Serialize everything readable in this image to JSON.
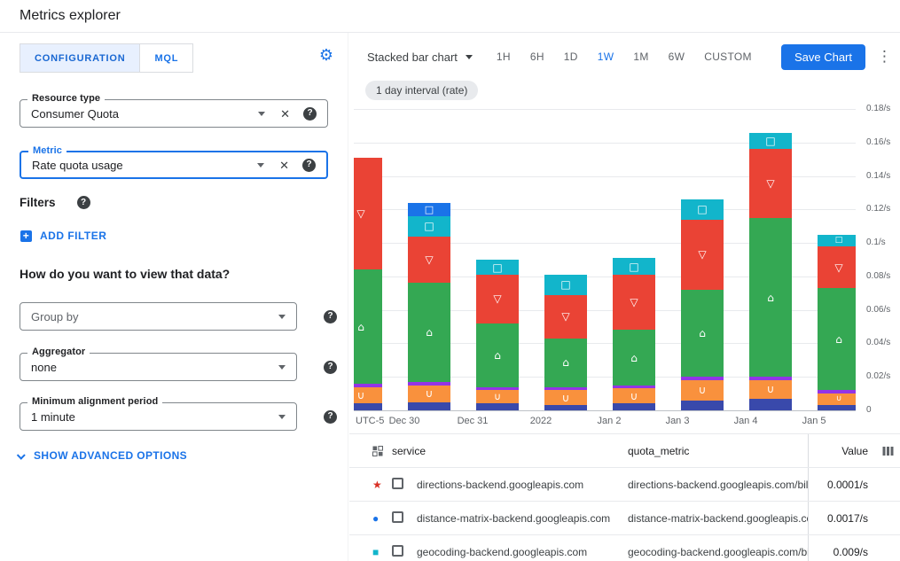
{
  "header": {
    "title": "Metrics explorer"
  },
  "icons": {
    "help_glyph": "?",
    "gear_glyph": "⚙",
    "kebab_glyph": "⋮",
    "clear_glyph": "✕",
    "plus_glyph": "+"
  },
  "left": {
    "tabs": [
      "CONFIGURATION",
      "MQL"
    ],
    "resource_type": {
      "label": "Resource type",
      "value": "Consumer Quota"
    },
    "metric": {
      "label": "Metric",
      "value": "Rate quota usage"
    },
    "filters_label": "Filters",
    "add_filter_label": "ADD FILTER",
    "view_question": "How do you want to view that data?",
    "group_by": {
      "placeholder": "Group by"
    },
    "aggregator": {
      "label": "Aggregator",
      "value": "none"
    },
    "alignment": {
      "label": "Minimum alignment period",
      "value": "1 minute"
    },
    "advanced_label": "SHOW ADVANCED OPTIONS"
  },
  "toolbar": {
    "chart_type": "Stacked bar chart",
    "ranges": [
      "1H",
      "6H",
      "1D",
      "1W",
      "1M",
      "6W",
      "CUSTOM"
    ],
    "active_range": "1W",
    "save_label": "Save Chart"
  },
  "chip": "1 day interval (rate)",
  "accent_color": "#1a73e8",
  "chart_data": {
    "type": "bar",
    "stacked": true,
    "x_axis_prefix": "UTC-5",
    "x_axis_labels": [
      "Dec 30",
      "Dec 31",
      "2022",
      "Jan 2",
      "Jan 3",
      "Jan 4",
      "Jan 5"
    ],
    "ylim": [
      0,
      0.18
    ],
    "y_tick_step": 0.02,
    "y_tick_labels": [
      "0",
      "0.02/s",
      "0.04/s",
      "0.06/s",
      "0.08/s",
      "0.1/s",
      "0.12/s",
      "0.14/s",
      "0.16/s",
      "0.18/s"
    ],
    "grid": true,
    "legend_position": "table-below",
    "series": [
      {
        "name": "series-navy",
        "color": "#3949ab",
        "marker": "",
        "values": [
          0.004,
          0.005,
          0.004,
          0.003,
          0.004,
          0.006,
          0.007,
          0.003
        ]
      },
      {
        "name": "series-orange",
        "color": "#f9913d",
        "marker": "∪",
        "values": [
          0.01,
          0.01,
          0.008,
          0.009,
          0.009,
          0.012,
          0.011,
          0.007
        ]
      },
      {
        "name": "series-purple",
        "color": "#9334e6",
        "marker": "",
        "values": [
          0.002,
          0.002,
          0.002,
          0.002,
          0.002,
          0.002,
          0.002,
          0.002
        ]
      },
      {
        "name": "series-green",
        "color": "#34a853",
        "marker": "⌂",
        "values": [
          0.068,
          0.059,
          0.038,
          0.029,
          0.033,
          0.052,
          0.095,
          0.061
        ]
      },
      {
        "name": "series-red",
        "color": "#ea4335",
        "marker": "▽",
        "values": [
          0.067,
          0.028,
          0.029,
          0.026,
          0.033,
          0.042,
          0.041,
          0.025
        ]
      },
      {
        "name": "series-teal",
        "color": "#12b5cb",
        "marker": "□",
        "values": [
          0,
          0.012,
          0.009,
          0.012,
          0.01,
          0.012,
          0.01,
          0.007
        ]
      },
      {
        "name": "series-blue",
        "color": "#1a73e8",
        "marker": "□",
        "values": [
          0,
          0.008,
          0,
          0,
          0,
          0,
          0,
          0
        ]
      }
    ]
  },
  "table": {
    "columns": [
      "service",
      "quota_metric",
      "Value"
    ],
    "rows": [
      {
        "marker": "star",
        "marker_color": "#d93025",
        "service": "directions-backend.googleapis.com",
        "quota_metric": "directions-backend.googleapis.com/billabl",
        "value": "0.0001/s"
      },
      {
        "marker": "circle",
        "marker_color": "#1a73e8",
        "service": "distance-matrix-backend.googleapis.com",
        "quota_metric": "distance-matrix-backend.googleapis.com/",
        "value": "0.0017/s"
      },
      {
        "marker": "square",
        "marker_color": "#12b5cb",
        "service": "geocoding-backend.googleapis.com",
        "quota_metric": "geocoding-backend.googleapis.com/billab",
        "value": "0.009/s"
      }
    ]
  }
}
